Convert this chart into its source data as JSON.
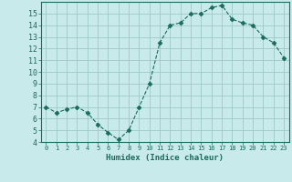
{
  "x": [
    0,
    1,
    2,
    3,
    4,
    5,
    6,
    7,
    8,
    9,
    10,
    11,
    12,
    13,
    14,
    15,
    16,
    17,
    18,
    19,
    20,
    21,
    22,
    23
  ],
  "y": [
    7.0,
    6.5,
    6.8,
    7.0,
    6.5,
    5.5,
    4.8,
    4.2,
    5.0,
    7.0,
    9.0,
    12.5,
    14.0,
    14.2,
    15.0,
    15.0,
    15.5,
    15.7,
    14.5,
    14.2,
    14.0,
    13.0,
    12.5,
    11.2
  ],
  "line_color": "#1a6b5a",
  "marker": "D",
  "marker_size": 2.5,
  "bg_color": "#c8eaea",
  "grid_color": "#a0c8c8",
  "xlabel": "Humidex (Indice chaleur)",
  "xlim": [
    -0.5,
    23.5
  ],
  "ylim": [
    4,
    16
  ],
  "yticks": [
    4,
    5,
    6,
    7,
    8,
    9,
    10,
    11,
    12,
    13,
    14,
    15
  ],
  "xticks": [
    0,
    1,
    2,
    3,
    4,
    5,
    6,
    7,
    8,
    9,
    10,
    11,
    12,
    13,
    14,
    15,
    16,
    17,
    18,
    19,
    20,
    21,
    22,
    23
  ]
}
